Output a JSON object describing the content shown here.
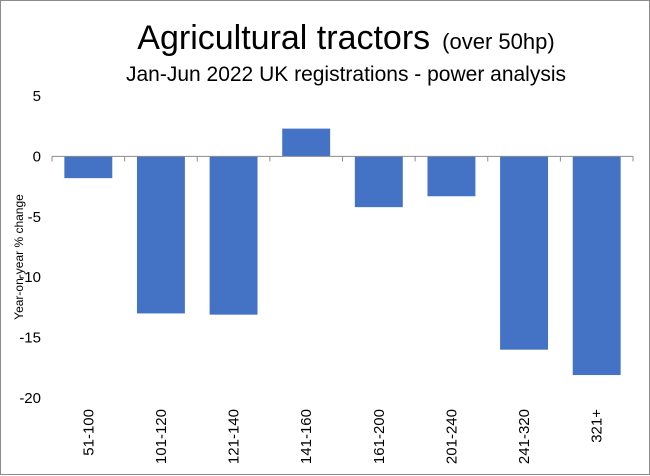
{
  "chart_data": {
    "type": "bar",
    "title": "Agricultural tractors",
    "title_suffix": "(over 50hp)",
    "subtitle": "Jan-Jun 2022 UK registrations - power analysis",
    "xlabel": "",
    "ylabel": "Year-on-year  % change",
    "categories": [
      "51-100",
      "101-120",
      "121-140",
      "141-160",
      "161-200",
      "201-240",
      "241-320",
      "321+"
    ],
    "values": [
      -1.8,
      -13.0,
      -13.1,
      2.3,
      -4.2,
      -3.3,
      -16.0,
      -18.1
    ],
    "ylim": [
      -20,
      5
    ],
    "yticks": [
      5,
      0,
      -5,
      -10,
      -15,
      -20
    ],
    "grid": false,
    "legend": "none",
    "bar_color": "#4472C4"
  }
}
